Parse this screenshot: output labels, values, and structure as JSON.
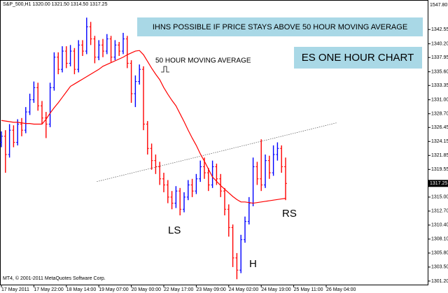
{
  "chart_data": {
    "type": "ohlc",
    "title": "S&P_500,H1  1320.00 1321.50 1314.50 1317.25",
    "footer": "MT4, © 2001-2011 MetaQuotes Software Corp.",
    "banner": "IHNS POSSIBLE IF PRICE STAYS ABOVE 50 HOUR MOVING AVERAGE",
    "chart_label": "ES ONE HOUR CHART",
    "annotations": [
      "LS",
      "H",
      "RS"
    ],
    "ruler_label": "1547.80",
    "last_price": 1317.25,
    "up_color": "#0000ff",
    "down_color": "#ff0000",
    "x": [
      0,
      2,
      4,
      6,
      8,
      10,
      12,
      14,
      16,
      18,
      20,
      22,
      24,
      26,
      28,
      30,
      32,
      34,
      36,
      38,
      40,
      42,
      44,
      46,
      48,
      50,
      52,
      54,
      56,
      58,
      60,
      62,
      64,
      66,
      68,
      70,
      72,
      74,
      76,
      78,
      80,
      82,
      84,
      86,
      88,
      90,
      92,
      94,
      96,
      98,
      100,
      102,
      104,
      106,
      108,
      110,
      112,
      114,
      116,
      118,
      120,
      122,
      124,
      126,
      128,
      130,
      132,
      134,
      136,
      138,
      140
    ],
    "open": [
      1324,
      1325,
      1322,
      1326,
      1324,
      1327,
      1326,
      1329,
      1331,
      1333,
      1330,
      1328,
      1327,
      1333,
      1338,
      1336,
      1339,
      1337,
      1339,
      1336,
      1340,
      1339,
      1343,
      1341,
      1338,
      1340,
      1339,
      1341,
      1338,
      1340,
      1339,
      1341,
      1337,
      1332,
      1334,
      1336,
      1327,
      1323,
      1321,
      1320,
      1318,
      1317,
      1315,
      1314,
      1316,
      1313,
      1315,
      1317,
      1316,
      1318,
      1320,
      1319,
      1317,
      1320,
      1318,
      1316,
      1313,
      1310,
      1305,
      1303,
      1308,
      1311,
      1314,
      1320,
      1318,
      1317,
      1321,
      1319,
      1322,
      1323,
      1320
    ],
    "high": [
      1325.8,
      1326,
      1327,
      1326.8,
      1327.8,
      1328,
      1329.8,
      1332,
      1334,
      1333.8,
      1330.8,
      1329,
      1333.8,
      1338.8,
      1338.8,
      1339.8,
      1339.8,
      1340,
      1339.5,
      1340.8,
      1340.8,
      1344.5,
      1343.8,
      1341.5,
      1340.8,
      1341,
      1341.8,
      1341.5,
      1340.8,
      1340.5,
      1342,
      1341.5,
      1337.5,
      1335,
      1336.8,
      1336.5,
      1327.5,
      1323.8,
      1322,
      1320.8,
      1319,
      1317.8,
      1316,
      1316.8,
      1316.5,
      1315.8,
      1317.8,
      1318,
      1318.8,
      1321,
      1321.5,
      1319.8,
      1321,
      1320.5,
      1318.8,
      1316.5,
      1313.8,
      1310.5,
      1305.8,
      1308.8,
      1311.8,
      1315,
      1321.5,
      1320.8,
      1324.5,
      1322,
      1321.8,
      1323.5,
      1324,
      1323.5,
      1321.5
    ],
    "low": [
      1323.2,
      1319,
      1321.5,
      1323.2,
      1323.5,
      1325,
      1325.5,
      1328.5,
      1330.5,
      1329.2,
      1327,
      1324.7,
      1326.5,
      1332.5,
      1335.2,
      1335.5,
      1336.2,
      1336.5,
      1335.2,
      1335.5,
      1338.2,
      1338.5,
      1340,
      1337,
      1337.5,
      1338,
      1338.5,
      1337.2,
      1337.5,
      1338.2,
      1338.5,
      1336.2,
      1330.5,
      1329.8,
      1333.5,
      1326,
      1322,
      1319.5,
      1318.8,
      1317,
      1315.8,
      1314,
      1313,
      1313.2,
      1312,
      1312.5,
      1314.5,
      1315,
      1315.5,
      1317.5,
      1318,
      1316,
      1316.5,
      1317,
      1315,
      1312,
      1308.5,
      1303.5,
      1301.5,
      1302.5,
      1307.5,
      1310.5,
      1313.5,
      1317,
      1316,
      1316.5,
      1318,
      1318.5,
      1321,
      1319,
      1314.5
    ],
    "close": [
      1325,
      1322,
      1326,
      1324,
      1327,
      1326,
      1329,
      1331,
      1333,
      1330,
      1328,
      1327,
      1333,
      1338,
      1336,
      1339,
      1337,
      1339,
      1336,
      1340,
      1339,
      1343,
      1341,
      1338,
      1340,
      1339,
      1341,
      1338,
      1340,
      1339,
      1341,
      1337,
      1332,
      1334,
      1336,
      1327,
      1323,
      1321,
      1320,
      1318,
      1317,
      1315,
      1314,
      1316,
      1313,
      1315,
      1317,
      1316,
      1318,
      1320,
      1319,
      1317,
      1320,
      1318,
      1316,
      1313,
      1310,
      1305,
      1303,
      1308,
      1311,
      1314,
      1320,
      1318,
      1317,
      1321,
      1319,
      1322,
      1323,
      1320,
      1317.25
    ],
    "series": [
      {
        "name": "50 HOUR MOVING AVERAGE",
        "color": "#ff0000",
        "values": [
          1327.6,
          1327.5,
          1327.4,
          1327.3,
          1327.3,
          1327.2,
          1327.1,
          1327.1,
          1327.0,
          1327.0,
          1327.0,
          1327.8,
          1328.8,
          1329.7,
          1330.5,
          1331.4,
          1332.3,
          1333.2,
          1333.6,
          1334.0,
          1334.4,
          1334.8,
          1335.2,
          1335.6,
          1336.0,
          1336.5,
          1336.8,
          1337.1,
          1337.4,
          1337.7,
          1338.0,
          1338.4,
          1338.7,
          1339.0,
          1339.1,
          1338.4,
          1337.3,
          1336.2,
          1335.2,
          1334.3,
          1333.0,
          1331.9,
          1330.9,
          1330.0,
          1328.7,
          1327.4,
          1326.0,
          1324.7,
          1323.5,
          1322.1,
          1320.9,
          1319.6,
          1318.3,
          1317.6,
          1316.9,
          1316.3,
          1315.7,
          1315.1,
          1314.6,
          1314.2,
          1314.2,
          1314.1,
          1314.0,
          1314.1,
          1314.2,
          1314.3,
          1314.4,
          1314.5,
          1314.6,
          1314.7,
          1314.8
        ]
      }
    ],
    "trendline": {
      "x": [
        47,
        165
      ],
      "values": [
        1317.55,
        1327.2
      ]
    },
    "xlim": [
      0,
      210
    ],
    "ylim": [
      1300.5,
      1347.4
    ],
    "xticks": [
      {
        "value": 0,
        "label": "17 May 2011"
      },
      {
        "value": 16,
        "label": "17 May 22:00"
      },
      {
        "value": 32,
        "label": "18 May 14:00"
      },
      {
        "value": 48,
        "label": "19 May 07:00"
      },
      {
        "value": 64,
        "label": "20 May 00:00"
      },
      {
        "value": 80,
        "label": "22 May 17:00"
      },
      {
        "value": 96,
        "label": "23 May 09:00"
      },
      {
        "value": 112,
        "label": "24 May 02:00"
      },
      {
        "value": 128,
        "label": "24 May 19:00"
      },
      {
        "value": 144,
        "label": "25 May 11:00"
      },
      {
        "value": 160,
        "label": "26 May 04:00"
      }
    ],
    "yticks": [
      1342.55,
      {
        "value": 1340.2,
        "label": "1340.20"
      },
      1337.95,
      {
        "value": 1335.6,
        "label": "1335.60"
      },
      1333.35,
      {
        "value": 1331,
        "label": "1331.00"
      },
      {
        "value": 1328.7,
        "label": "1328.70"
      },
      1326.45,
      1324.15,
      1321.85,
      1319.55,
      {
        "value": 1315,
        "label": "1315.00"
      },
      {
        "value": 1312.7,
        "label": "1312.70"
      },
      {
        "value": 1310.4,
        "label": "1310.40"
      },
      {
        "value": 1308.1,
        "label": "1308.10"
      },
      {
        "value": 1305.8,
        "label": "1305.80"
      },
      {
        "value": 1303.5,
        "label": "1303.50"
      },
      {
        "value": 1301.2,
        "label": "1301.20"
      }
    ]
  }
}
